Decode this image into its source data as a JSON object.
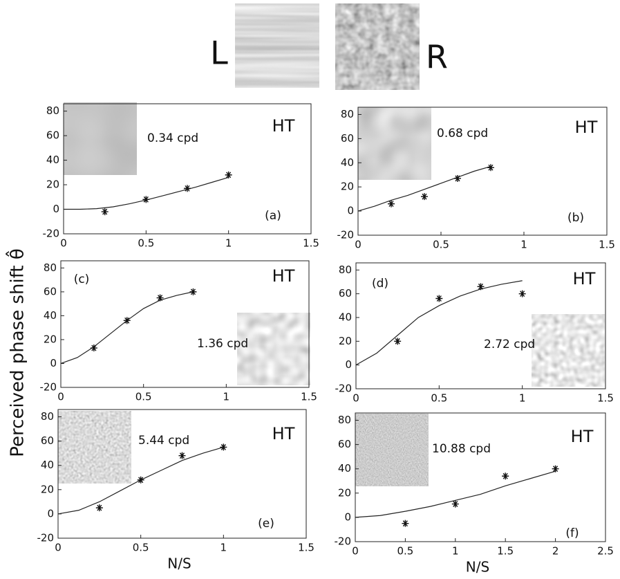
{
  "figure": {
    "left_label": "L",
    "right_label": "R",
    "ylabel": "Perceived phase shift θ̂"
  },
  "chart_data": [
    {
      "type": "scatter",
      "annotations": [
        "HT",
        "0.34 cpd",
        "(a)"
      ],
      "x": [
        0.25,
        0.5,
        0.75,
        1.0
      ],
      "values": [
        -2,
        8,
        17,
        28
      ],
      "curve": {
        "x": [
          0,
          0.1,
          0.2,
          0.3,
          0.4,
          0.5,
          0.6,
          0.7,
          0.8,
          0.9,
          1.0
        ],
        "values": [
          0,
          0,
          0.5,
          2,
          4.5,
          7.5,
          11,
          14.5,
          18,
          22,
          26
        ]
      },
      "xlim": [
        0,
        1.5
      ],
      "xticks": [
        0,
        0.5,
        1,
        1.5
      ],
      "ylim": [
        -20,
        86
      ],
      "yticks": [
        -20,
        0,
        20,
        40,
        60,
        80
      ]
    },
    {
      "type": "scatter",
      "annotations": [
        "HT",
        "0.68 cpd",
        "(b)"
      ],
      "x": [
        0.2,
        0.4,
        0.6,
        0.8
      ],
      "values": [
        6,
        12,
        27,
        36
      ],
      "curve": {
        "x": [
          0,
          0.1,
          0.2,
          0.3,
          0.4,
          0.5,
          0.6,
          0.7,
          0.8
        ],
        "values": [
          0,
          4,
          9,
          13,
          18,
          23,
          28,
          33,
          37
        ]
      },
      "xlim": [
        0,
        1.5
      ],
      "xticks": [
        0,
        0.5,
        1,
        1.5
      ],
      "ylim": [
        -20,
        86
      ],
      "yticks": [
        -20,
        0,
        20,
        40,
        60,
        80
      ]
    },
    {
      "type": "scatter",
      "annotations": [
        "HT",
        "1.36 cpd",
        "(c)"
      ],
      "x": [
        0.2,
        0.4,
        0.6,
        0.8
      ],
      "values": [
        13,
        36,
        55,
        60
      ],
      "curve": {
        "x": [
          0,
          0.1,
          0.2,
          0.3,
          0.4,
          0.5,
          0.6,
          0.7,
          0.8
        ],
        "values": [
          0,
          5,
          14,
          25,
          36,
          46,
          53,
          57,
          60
        ]
      },
      "xlim": [
        0,
        1.5
      ],
      "xticks": [
        0,
        0.5,
        1,
        1.5
      ],
      "ylim": [
        -20,
        86
      ],
      "yticks": [
        -20,
        0,
        20,
        40,
        60,
        80
      ]
    },
    {
      "type": "scatter",
      "annotations": [
        "HT",
        "2.72 cpd",
        "(d)"
      ],
      "x": [
        0.25,
        0.5,
        0.75,
        1.0
      ],
      "values": [
        20,
        56,
        66,
        60
      ],
      "curve": {
        "x": [
          0,
          0.125,
          0.25,
          0.375,
          0.5,
          0.625,
          0.75,
          0.875,
          1.0
        ],
        "values": [
          0,
          10,
          25,
          40,
          50,
          58,
          64,
          68,
          71
        ]
      },
      "xlim": [
        0,
        1.5
      ],
      "xticks": [
        0,
        0.5,
        1,
        1.5
      ],
      "ylim": [
        -20,
        86
      ],
      "yticks": [
        -20,
        0,
        20,
        40,
        60,
        80
      ]
    },
    {
      "type": "scatter",
      "annotations": [
        "HT",
        "5.44 cpd",
        "(e)"
      ],
      "x": [
        0.25,
        0.5,
        0.75,
        1.0
      ],
      "values": [
        5,
        28,
        48,
        55
      ],
      "curve": {
        "x": [
          0,
          0.125,
          0.25,
          0.375,
          0.5,
          0.625,
          0.75,
          0.875,
          1.0
        ],
        "values": [
          0,
          3,
          10,
          19,
          28,
          36,
          44,
          50,
          55
        ]
      },
      "xlim": [
        0,
        1.5
      ],
      "xticks": [
        0,
        0.5,
        1,
        1.5
      ],
      "ylim": [
        -20,
        86
      ],
      "yticks": [
        -20,
        0,
        20,
        40,
        60,
        80
      ],
      "xlabel": "N/S"
    },
    {
      "type": "scatter",
      "annotations": [
        "HT",
        "10.88 cpd",
        "(f)"
      ],
      "x": [
        0.5,
        1.0,
        1.5,
        2.0
      ],
      "values": [
        -5,
        11,
        34,
        40
      ],
      "curve": {
        "x": [
          0,
          0.25,
          0.5,
          0.75,
          1.0,
          1.25,
          1.5,
          1.75,
          2.0
        ],
        "values": [
          0,
          1.5,
          5,
          9,
          14,
          19,
          26,
          32,
          38
        ]
      },
      "xlim": [
        0,
        2.5
      ],
      "xticks": [
        0,
        0.5,
        1,
        1.5,
        2,
        2.5
      ],
      "ylim": [
        -20,
        86
      ],
      "yticks": [
        -20,
        0,
        20,
        40,
        60,
        80
      ],
      "xlabel": "N/S"
    }
  ]
}
